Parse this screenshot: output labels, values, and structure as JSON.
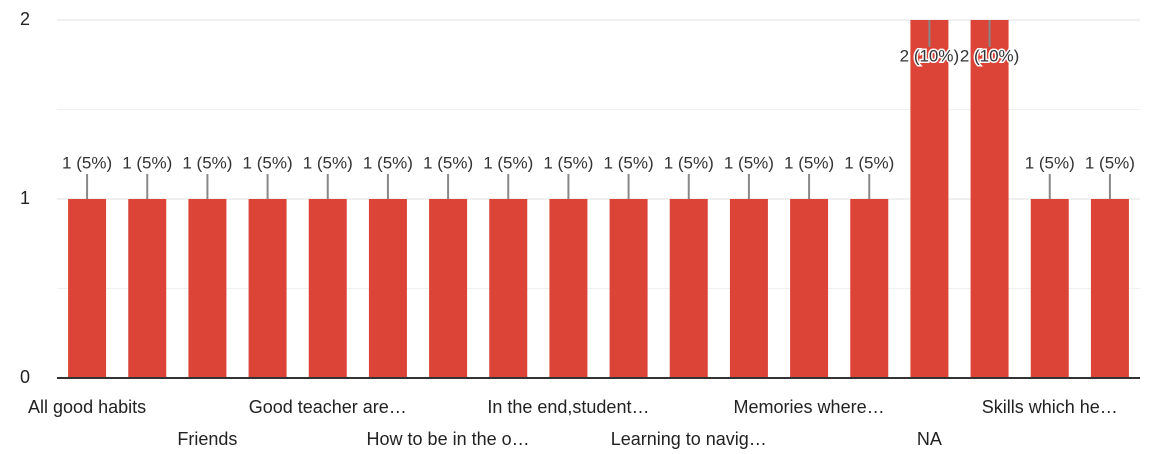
{
  "chart_data": {
    "type": "bar",
    "categories": [
      "All good habits",
      null,
      "Friends",
      null,
      "Good teacher are…",
      null,
      "How to be in the o…",
      null,
      "In the end,student…",
      null,
      "Learning to navig…",
      null,
      "Memories where…",
      null,
      "NA",
      null,
      "Skills which he…",
      null
    ],
    "values": [
      1,
      1,
      1,
      1,
      1,
      1,
      1,
      1,
      1,
      1,
      1,
      1,
      1,
      1,
      2,
      2,
      1,
      1
    ],
    "value_labels": [
      "1 (5%)",
      "1 (5%)",
      "1 (5%)",
      "1 (5%)",
      "1 (5%)",
      "1 (5%)",
      "1 (5%)",
      "1 (5%)",
      "1 (5%)",
      "1 (5%)",
      "1 (5%)",
      "1 (5%)",
      "1 (5%)",
      "1 (5%)",
      "2 (10%)",
      "2 (10%)",
      "1 (5%)",
      "1 (5%)"
    ],
    "color": "#db4437",
    "ylim": [
      0,
      2
    ],
    "yticks": [
      0,
      1,
      2
    ],
    "minor_yticks": [
      0.5,
      1.5
    ],
    "grid": true
  }
}
